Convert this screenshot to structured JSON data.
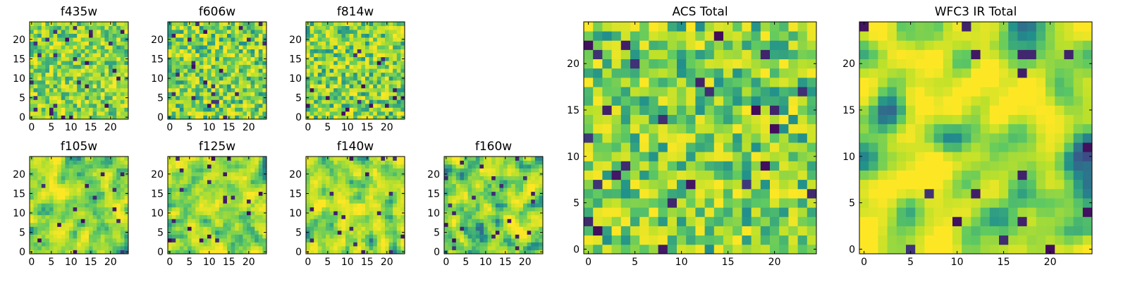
{
  "colormap": {
    "name": "viridis",
    "stops": [
      "#440154",
      "#3b528b",
      "#21918c",
      "#5ec962",
      "#bde12a",
      "#fde725"
    ]
  },
  "chart_data": [
    {
      "type": "heatmap",
      "title": "f435w",
      "grid_size": 25,
      "seed": 11,
      "smooth": 0,
      "base": 0.72,
      "contrast": 0.2,
      "xticks": [
        0,
        5,
        10,
        15,
        20
      ],
      "yticks": [
        0,
        5,
        10,
        15,
        20
      ],
      "xlim": [
        0,
        24
      ],
      "ylim": [
        0,
        24
      ]
    },
    {
      "type": "heatmap",
      "title": "f606w",
      "grid_size": 25,
      "seed": 23,
      "smooth": 0,
      "base": 0.7,
      "contrast": 0.22,
      "xticks": [
        0,
        5,
        10,
        15,
        20
      ],
      "yticks": [
        0,
        5,
        10,
        15,
        20
      ],
      "xlim": [
        0,
        24
      ],
      "ylim": [
        0,
        24
      ]
    },
    {
      "type": "heatmap",
      "title": "f814w",
      "grid_size": 25,
      "seed": 37,
      "smooth": 0,
      "base": 0.7,
      "contrast": 0.22,
      "xticks": [
        0,
        5,
        10,
        15,
        20
      ],
      "yticks": [
        0,
        5,
        10,
        15,
        20
      ],
      "xlim": [
        0,
        24
      ],
      "ylim": [
        0,
        24
      ]
    },
    {
      "type": "heatmap",
      "title": "f105w",
      "grid_size": 25,
      "seed": 41,
      "smooth": 1,
      "base": 0.74,
      "contrast": 0.3,
      "xticks": [
        0,
        5,
        10,
        15,
        20
      ],
      "yticks": [
        0,
        5,
        10,
        15,
        20
      ],
      "xlim": [
        0,
        24
      ],
      "ylim": [
        0,
        24
      ]
    },
    {
      "type": "heatmap",
      "title": "f125w",
      "grid_size": 25,
      "seed": 53,
      "smooth": 1,
      "base": 0.72,
      "contrast": 0.3,
      "xticks": [
        0,
        5,
        10,
        15,
        20
      ],
      "yticks": [
        0,
        5,
        10,
        15,
        20
      ],
      "xlim": [
        0,
        24
      ],
      "ylim": [
        0,
        24
      ]
    },
    {
      "type": "heatmap",
      "title": "f140w",
      "grid_size": 25,
      "seed": 67,
      "smooth": 1,
      "base": 0.72,
      "contrast": 0.3,
      "xticks": [
        0,
        5,
        10,
        15,
        20
      ],
      "yticks": [
        0,
        5,
        10,
        15,
        20
      ],
      "xlim": [
        0,
        24
      ],
      "ylim": [
        0,
        24
      ]
    },
    {
      "type": "heatmap",
      "title": "f160w",
      "grid_size": 25,
      "seed": 79,
      "smooth": 1,
      "base": 0.7,
      "contrast": 0.3,
      "xticks": [
        0,
        5,
        10,
        15,
        20
      ],
      "yticks": [
        0,
        5,
        10,
        15,
        20
      ],
      "xlim": [
        0,
        24
      ],
      "ylim": [
        0,
        24
      ]
    },
    {
      "type": "heatmap",
      "title": "ACS Total",
      "grid_size": 25,
      "seed": 97,
      "smooth": 0,
      "base": 0.7,
      "contrast": 0.22,
      "xticks": [
        0,
        5,
        10,
        15,
        20
      ],
      "yticks": [
        0,
        5,
        10,
        15,
        20
      ],
      "xlim": [
        0,
        24
      ],
      "ylim": [
        0,
        24
      ]
    },
    {
      "type": "heatmap",
      "title": "WFC3 IR Total",
      "grid_size": 25,
      "seed": 113,
      "smooth": 2,
      "base": 0.7,
      "contrast": 0.38,
      "xticks": [
        0,
        5,
        10,
        15,
        20
      ],
      "yticks": [
        0,
        5,
        10,
        15,
        20
      ],
      "xlim": [
        0,
        24
      ],
      "ylim": [
        0,
        24
      ]
    }
  ]
}
